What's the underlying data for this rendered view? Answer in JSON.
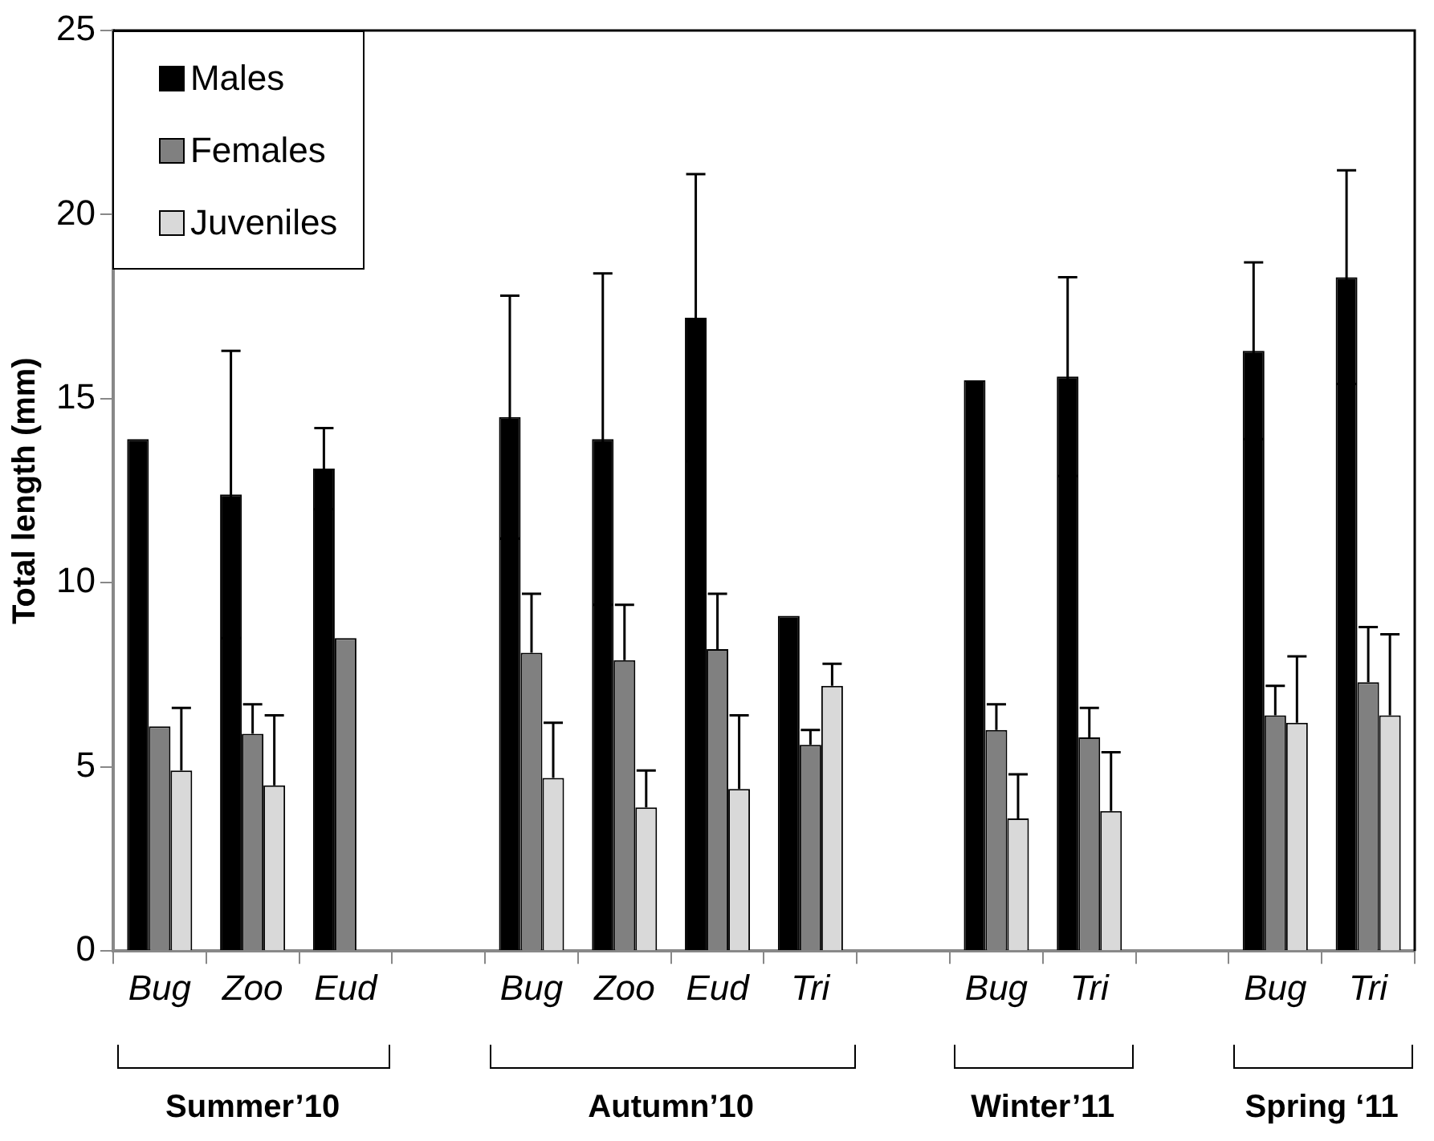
{
  "chart_data": {
    "type": "bar",
    "ylabel": "Total length (mm)",
    "categories": [
      "Bug",
      "Zoo",
      "Eud",
      null,
      "Bug",
      "Zoo",
      "Eud",
      "Tri",
      null,
      "Bug",
      "Tri",
      null,
      "Bug",
      "Tri"
    ],
    "series": [
      {
        "name": "Males",
        "color": "#000000",
        "values": [
          13.9,
          12.4,
          13.1,
          null,
          14.5,
          13.9,
          17.2,
          9.1,
          null,
          15.5,
          15.6,
          null,
          16.3,
          18.3
        ],
        "errors": [
          null,
          3.9,
          1.1,
          null,
          3.3,
          4.5,
          3.9,
          null,
          null,
          null,
          2.7,
          null,
          2.4,
          2.9
        ]
      },
      {
        "name": "Females",
        "color": "#808080",
        "values": [
          6.1,
          5.9,
          8.5,
          null,
          8.1,
          7.9,
          8.2,
          5.6,
          null,
          6.0,
          5.8,
          null,
          6.4,
          7.3
        ],
        "errors": [
          null,
          [
            5.9,
            6.7
          ],
          null,
          null,
          [
            8.1,
            9.7
          ],
          [
            7.9,
            9.4
          ],
          [
            8.2,
            9.7
          ],
          [
            5.6,
            6.0
          ],
          null,
          [
            6.0,
            6.7
          ],
          [
            5.8,
            6.6
          ],
          null,
          [
            6.4,
            7.2
          ],
          [
            7.3,
            8.8
          ]
        ]
      },
      {
        "name": "Juveniles",
        "color": "#d9d9d9",
        "values": [
          4.9,
          4.5,
          null,
          null,
          4.7,
          3.9,
          4.4,
          7.2,
          null,
          3.6,
          3.8,
          null,
          6.2,
          6.4
        ],
        "errors": [
          [
            4.9,
            6.6
          ],
          [
            4.5,
            6.4
          ],
          null,
          null,
          [
            4.7,
            6.2
          ],
          [
            3.9,
            4.9
          ],
          [
            4.4,
            6.4
          ],
          [
            7.2,
            7.8
          ],
          null,
          [
            3.6,
            4.8
          ],
          [
            3.8,
            5.4
          ],
          null,
          [
            6.2,
            8.0
          ],
          [
            6.4,
            8.6
          ]
        ]
      }
    ],
    "ylim": [
      0,
      25
    ],
    "yticks": [
      0,
      5,
      10,
      15,
      20,
      25
    ],
    "grid": false,
    "legend": "top left",
    "annotations": [
      "Summer’10",
      "Autumn’10",
      "Winter’11",
      "Spring ‘11"
    ]
  }
}
